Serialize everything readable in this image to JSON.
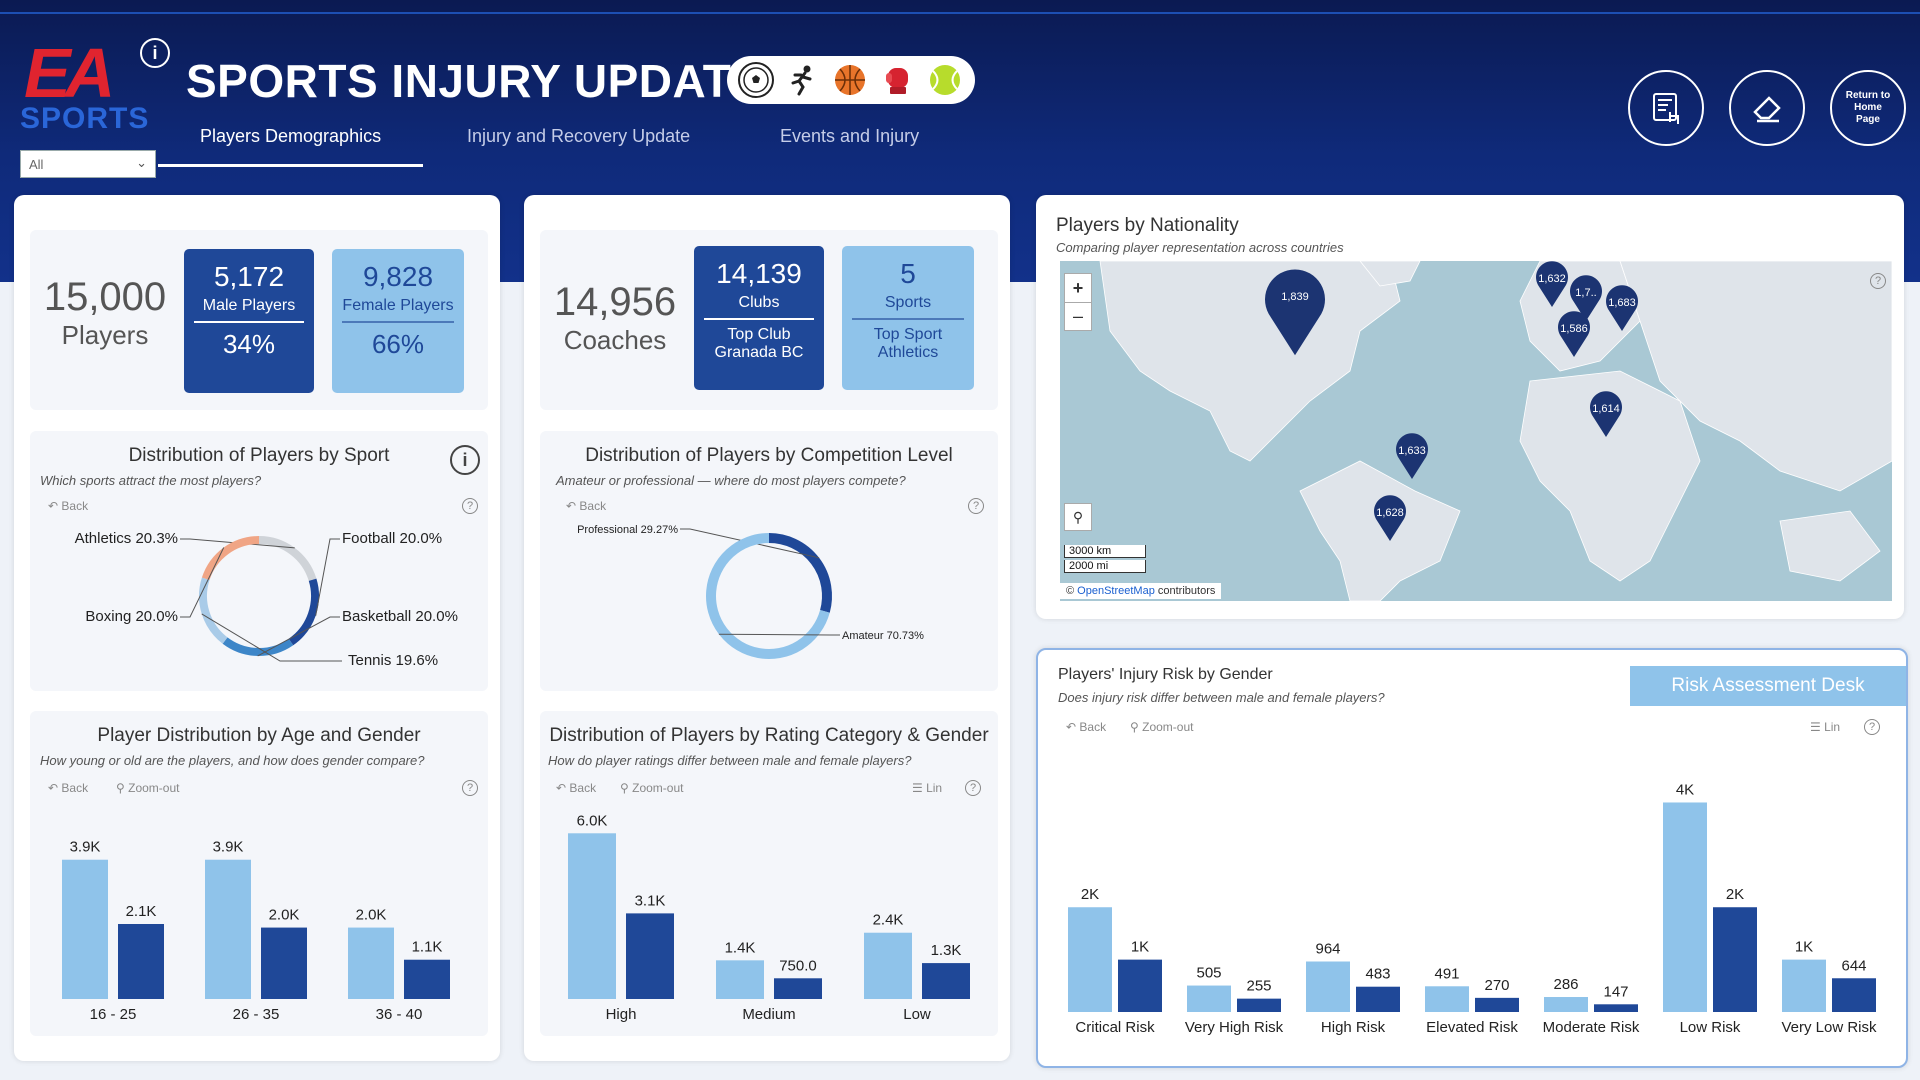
{
  "header": {
    "logo_top": "EA",
    "logo_bottom": "SPORTS",
    "logo_info": "i",
    "filter_value": "All",
    "title": "SPORTS INJURY UPDATE",
    "tabs": [
      {
        "label": "Players Demographics"
      },
      {
        "label": "Injury and Recovery Update"
      },
      {
        "label": "Events and Injury"
      }
    ],
    "sport_icons": [
      "soccer-ball-icon",
      "runner-icon",
      "basketball-icon",
      "boxing-glove-icon",
      "tennis-ball-icon"
    ],
    "return_label": "Return to Home Page"
  },
  "players": {
    "total": "15,000",
    "total_label": "Players",
    "male_value": "5,172",
    "male_label": "Male Players",
    "male_pct": "34%",
    "female_value": "9,828",
    "female_label": "Female Players",
    "female_pct": "66%"
  },
  "coaches": {
    "total": "14,956",
    "total_label": "Coaches",
    "clubs_value": "14,139",
    "clubs_label": "Clubs",
    "top_club": "Top Club\nGranada BC",
    "sports_value": "5",
    "sports_label": "Sports",
    "top_sport": "Top Sport\nAthletics"
  },
  "toolbar": {
    "back": "Back",
    "zoom_out": "Zoom-out",
    "lin": "Lin",
    "help": "?"
  },
  "colors": {
    "light": "#8fc3ea",
    "dark": "#1f4898"
  },
  "sport_dist": {
    "title": "Distribution of Players by Sport",
    "subtitle": "Which sports attract the most players?",
    "info": "i"
  },
  "competition": {
    "title": "Distribution of Players by Competition Level",
    "subtitle": "Amateur or professional — where do most players compete?"
  },
  "age_gender": {
    "title": "Player Distribution by Age and Gender",
    "subtitle": "How young or old are the players, and how does gender compare?"
  },
  "rating": {
    "title": "Distribution of Players by Rating Category & Gender",
    "subtitle": "How do player ratings differ between male and female players?"
  },
  "map": {
    "title": "Players by Nationality",
    "subtitle": "Comparing player representation across countries",
    "zoom_in": "+",
    "zoom_out": "–",
    "scale_km": "3000 km",
    "scale_mi": "2000 mi",
    "attribution_prefix": "©",
    "attribution_link": "OpenStreetMap",
    "attribution_suffix": "contributors",
    "pins": [
      "1,839",
      "1,632",
      "1,7..",
      "1,683",
      "1,586",
      "1,614",
      "1,633",
      "1,628"
    ]
  },
  "injury_risk": {
    "title": "Players' Injury Risk by Gender",
    "subtitle": "Does injury risk differ between male and female players?",
    "desk_button": "Risk Assessment Desk"
  },
  "chart_data": [
    {
      "type": "pie",
      "categories": [
        "Athletics",
        "Football",
        "Basketball",
        "Tennis",
        "Boxing"
      ],
      "values": [
        20.3,
        20.0,
        20.0,
        19.6,
        20.0
      ],
      "labels": [
        "Athletics 20.3%",
        "Football 20.0%",
        "Basketball 20.0%",
        "Tennis 19.6%",
        "Boxing 20.0%"
      ]
    },
    {
      "type": "pie",
      "categories": [
        "Professional",
        "Amateur"
      ],
      "values": [
        29.27,
        70.73
      ],
      "labels": [
        "Professional 29.27%",
        "Amateur 70.73%"
      ]
    },
    {
      "type": "bar",
      "categories": [
        "16 - 25",
        "26 - 35",
        "36 - 40"
      ],
      "series": [
        {
          "values": [
            3900,
            3900,
            2000
          ],
          "labels": [
            "3.9K",
            "3.9K",
            "2.0K"
          ]
        },
        {
          "values": [
            2100,
            2000,
            1100
          ],
          "labels": [
            "2.1K",
            "2.0K",
            "1.1K"
          ]
        }
      ],
      "ylim": [
        0,
        4200
      ]
    },
    {
      "type": "bar",
      "categories": [
        "High",
        "Medium",
        "Low"
      ],
      "series": [
        {
          "values": [
            6000,
            1400,
            2400
          ],
          "labels": [
            "6.0K",
            "1.4K",
            "2.4K"
          ]
        },
        {
          "values": [
            3100,
            750,
            1300
          ],
          "labels": [
            "3.1K",
            "750.0",
            "1.3K"
          ]
        }
      ],
      "ylim": [
        0,
        6300
      ]
    },
    {
      "type": "bar",
      "categories": [
        "Critical Risk",
        "Very High Risk",
        "High Risk",
        "Elevated Risk",
        "Moderate Risk",
        "Low Risk",
        "Very Low Risk"
      ],
      "series": [
        {
          "values": [
            2000,
            505,
            964,
            491,
            286,
            4000,
            1000
          ],
          "labels": [
            "2K",
            "505",
            "964",
            "491",
            "286",
            "4K",
            "1K"
          ]
        },
        {
          "values": [
            1000,
            255,
            483,
            270,
            147,
            2000,
            644
          ],
          "labels": [
            "1K",
            "255",
            "483",
            "270",
            "147",
            "2K",
            "644"
          ]
        }
      ],
      "ylim": [
        0,
        4200
      ]
    }
  ]
}
